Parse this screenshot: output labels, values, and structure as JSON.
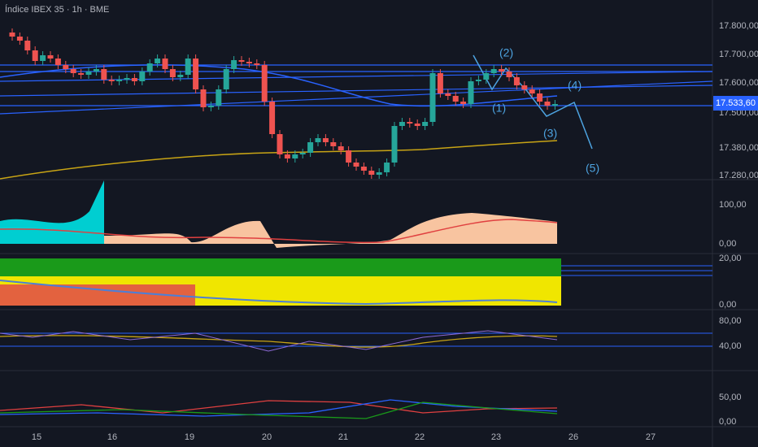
{
  "header": {
    "title": "Índice IBEX 35 · 1h · BME"
  },
  "price_axis": {
    "ticks": [
      "17.800,00",
      "17.700,00",
      "17.600,00",
      "17.500,00",
      "17.380,00",
      "17.280,00"
    ],
    "last_price": "17.533,60"
  },
  "time_axis": {
    "labels": [
      "15",
      "16",
      "19",
      "20",
      "21",
      "22",
      "23",
      "26",
      "27"
    ]
  },
  "wave_labels": [
    "(1)",
    "(2)",
    "(3)",
    "(4)",
    "(5)"
  ],
  "panes": [
    {
      "ticks": [
        "100,00",
        "0,00"
      ]
    },
    {
      "ticks": [
        "20,00",
        "0,00"
      ]
    },
    {
      "ticks": [
        "80,00",
        "40,00"
      ]
    },
    {
      "ticks": [
        "50,00",
        "0,00"
      ]
    }
  ]
}
